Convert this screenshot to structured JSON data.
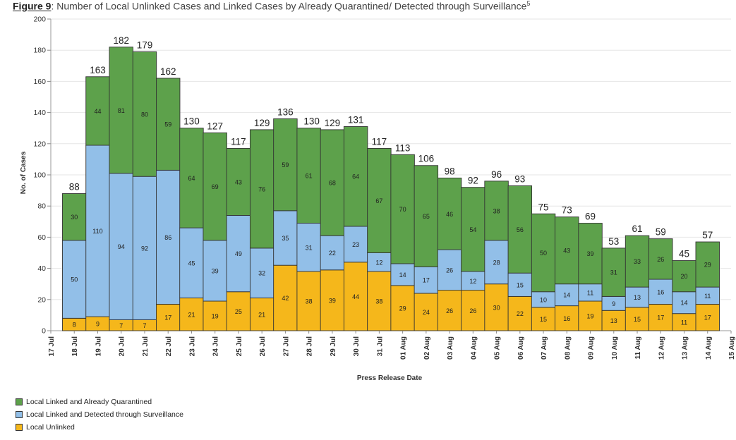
{
  "title": {
    "prefix": "Figure 9",
    "text": ": Number of Local Unlinked Cases and Linked Cases by Already Quarantined/ Detected through Surveillance",
    "sup": "5"
  },
  "chart_data": {
    "type": "bar",
    "stacked": true,
    "ylabel": "No. of Cases",
    "xlabel": "Press Release Date",
    "ylim": [
      0,
      200
    ],
    "yticks": [
      0,
      20,
      40,
      60,
      80,
      100,
      120,
      140,
      160,
      180,
      200
    ],
    "categories": [
      "17 Jul",
      "18 Jul",
      "19 Jul",
      "20 Jul",
      "21 Jul",
      "22 Jul",
      "23 Jul",
      "24 Jul",
      "25 Jul",
      "26 Jul",
      "27 Jul",
      "28 Jul",
      "29 Jul",
      "30 Jul",
      "31 Jul",
      "01 Aug",
      "02 Aug",
      "03 Aug",
      "04 Aug",
      "05 Aug",
      "06 Aug",
      "07 Aug",
      "08 Aug",
      "09 Aug",
      "10 Aug",
      "11 Aug",
      "12 Aug",
      "13 Aug",
      "14 Aug",
      "15 Aug"
    ],
    "series": [
      {
        "name": "Local Unlinked",
        "color": "#F5B71B",
        "values": [
          null,
          8,
          9,
          7,
          7,
          17,
          21,
          19,
          25,
          21,
          42,
          38,
          39,
          44,
          38,
          29,
          24,
          26,
          26,
          30,
          22,
          15,
          16,
          19,
          13,
          15,
          17,
          11,
          17,
          null
        ]
      },
      {
        "name": "Local Linked and Detected through Surveillance",
        "color": "#92BFE8",
        "values": [
          null,
          50,
          110,
          94,
          92,
          86,
          45,
          39,
          49,
          32,
          35,
          31,
          22,
          23,
          12,
          14,
          17,
          26,
          12,
          28,
          15,
          10,
          14,
          11,
          9,
          13,
          16,
          14,
          11,
          null
        ]
      },
      {
        "name": "Local Linked and Already Quarantined",
        "color": "#5DA14B",
        "values": [
          null,
          30,
          44,
          81,
          80,
          59,
          64,
          69,
          43,
          76,
          59,
          61,
          68,
          64,
          67,
          70,
          65,
          46,
          54,
          38,
          56,
          50,
          43,
          39,
          31,
          33,
          26,
          20,
          29,
          null
        ]
      }
    ],
    "totals": [
      null,
      88,
      163,
      182,
      179,
      162,
      130,
      127,
      117,
      129,
      136,
      130,
      129,
      131,
      117,
      113,
      106,
      98,
      92,
      96,
      93,
      75,
      73,
      69,
      53,
      61,
      59,
      45,
      57,
      null
    ],
    "legend": {
      "position": "bottom-left",
      "items": [
        "Local Linked and Already Quarantined",
        "Local Linked and Detected through Surveillance",
        "Local Unlinked"
      ]
    }
  }
}
